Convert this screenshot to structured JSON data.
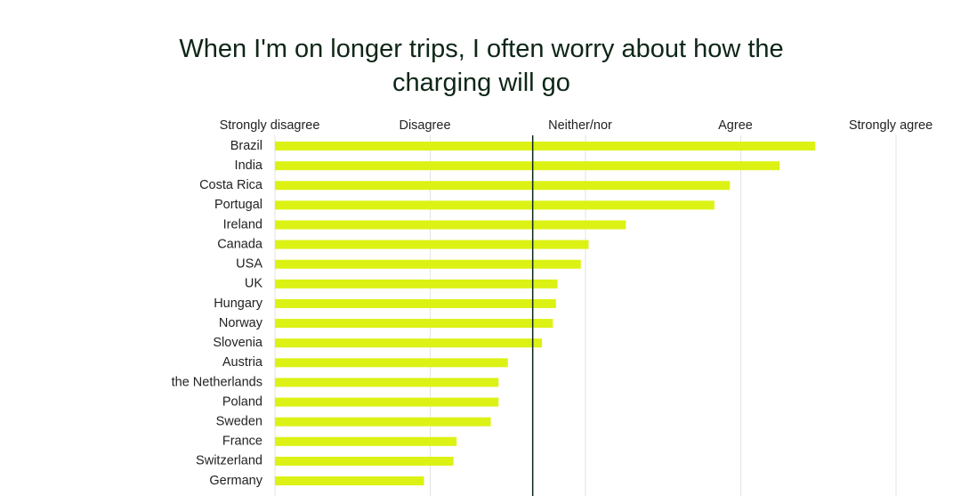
{
  "chart_data": {
    "type": "bar",
    "orientation": "horizontal",
    "title": "When I'm on longer trips, I often worry about how the charging will go",
    "categories": [
      "Brazil",
      "India",
      "Costa Rica",
      "Portugal",
      "Ireland",
      "Canada",
      "USA",
      "UK",
      "Hungary",
      "Norway",
      "Slovenia",
      "Austria",
      "the Netherlands",
      "Poland",
      "Sweden",
      "France",
      "Switzerland",
      "Germany"
    ],
    "values": [
      4.48,
      4.25,
      3.93,
      3.83,
      3.26,
      3.02,
      2.97,
      2.82,
      2.81,
      2.79,
      2.72,
      2.5,
      2.44,
      2.44,
      2.39,
      2.17,
      2.15,
      1.96
    ],
    "color": "#dcf214",
    "xlim": [
      1,
      5
    ],
    "xticks": [
      {
        "value": 1,
        "label": "Strongly disagree"
      },
      {
        "value": 2,
        "label": "Disagree"
      },
      {
        "value": 3,
        "label": "Neither/nor"
      },
      {
        "value": 4,
        "label": "Agree"
      },
      {
        "value": 5,
        "label": "Strongly agree"
      }
    ],
    "reference_line": 2.66,
    "grid": true
  }
}
